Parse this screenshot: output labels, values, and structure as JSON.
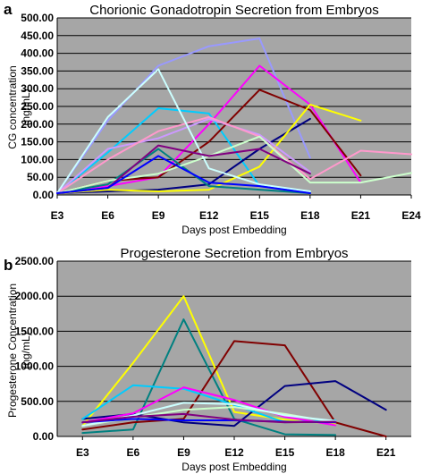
{
  "chart_data": [
    {
      "panel": "a",
      "type": "line",
      "title": "Chorionic Gonadotropin Secretion from Embryos",
      "xlabel": "Days post Embedding",
      "ylabel": [
        "CG concentration",
        "(ng/mL)"
      ],
      "categories": [
        "E3",
        "E6",
        "E9",
        "E12",
        "E15",
        "E18",
        "E21",
        "E24"
      ],
      "ylim": [
        0,
        500
      ],
      "yticks": [
        "0.00",
        "50.00",
        "100.00",
        "150.00",
        "200.00",
        "250.00",
        "300.00",
        "350.00",
        "400.00",
        "450.00",
        "500.00"
      ],
      "series": [
        {
          "color": "#9999ff",
          "values": [
            5,
            210,
            365,
            420,
            442,
            105,
            null,
            null
          ]
        },
        {
          "color": "#ff00ff",
          "values": [
            5,
            25,
            50,
            200,
            365,
            255,
            35,
            null
          ]
        },
        {
          "color": "#00ccff",
          "values": [
            5,
            120,
            245,
            230,
            25,
            10,
            null,
            null
          ]
        },
        {
          "color": "#800000",
          "values": [
            5,
            40,
            50,
            150,
            297,
            240,
            55,
            null
          ]
        },
        {
          "color": "#000080",
          "values": [
            5,
            10,
            15,
            30,
            130,
            215,
            null,
            null
          ]
        },
        {
          "color": "#ffff00",
          "values": [
            5,
            15,
            10,
            15,
            80,
            255,
            210,
            null
          ]
        },
        {
          "color": "#008080",
          "values": [
            5,
            30,
            130,
            25,
            15,
            5,
            null,
            null
          ]
        },
        {
          "color": "#cc99ff",
          "values": [
            5,
            130,
            160,
            215,
            170,
            65,
            null,
            null
          ]
        },
        {
          "color": "#ff99cc",
          "values": [
            5,
            100,
            180,
            220,
            165,
            45,
            125,
            115
          ]
        },
        {
          "color": "#ccffcc",
          "values": [
            5,
            40,
            60,
            110,
            165,
            35,
            35,
            62
          ]
        },
        {
          "color": "#ccffff",
          "values": [
            5,
            220,
            355,
            75,
            30,
            10,
            null,
            null
          ]
        },
        {
          "color": "#800080",
          "values": [
            5,
            20,
            140,
            110,
            130,
            60,
            null,
            null
          ]
        },
        {
          "color": "#0000ff",
          "values": [
            5,
            20,
            110,
            35,
            25,
            5,
            null,
            null
          ]
        }
      ]
    },
    {
      "panel": "b",
      "type": "line",
      "title": "Progesterone Secretion from Embryos",
      "xlabel": "Days post Embedding",
      "ylabel": [
        "Progesterone Concentration",
        "(ng/mL)"
      ],
      "categories": [
        "E3",
        "E6",
        "E9",
        "E12",
        "E15",
        "E18",
        "E21"
      ],
      "ylim": [
        0,
        2500
      ],
      "yticks": [
        "0.00",
        "500.00",
        "1000.00",
        "1500.00",
        "2000.00",
        "2500.00"
      ],
      "series": [
        {
          "color": "#ffff00",
          "values": [
            150,
            1050,
            2000,
            350,
            240,
            180,
            null
          ]
        },
        {
          "color": "#008080",
          "values": [
            50,
            100,
            1670,
            250,
            30,
            20,
            null
          ]
        },
        {
          "color": "#800000",
          "values": [
            100,
            200,
            250,
            1360,
            1300,
            200,
            0
          ]
        },
        {
          "color": "#000080",
          "values": [
            250,
            320,
            200,
            150,
            720,
            790,
            380
          ]
        },
        {
          "color": "#00ccff",
          "values": [
            250,
            730,
            680,
            450,
            200,
            230,
            null
          ]
        },
        {
          "color": "#ff00ff",
          "values": [
            200,
            330,
            700,
            520,
            280,
            160,
            null
          ]
        },
        {
          "color": "#ccffcc",
          "values": [
            150,
            270,
            380,
            420,
            320,
            200,
            null
          ]
        },
        {
          "color": "#ccffff",
          "values": [
            150,
            300,
            480,
            460,
            300,
            220,
            null
          ]
        },
        {
          "color": "#0000ff",
          "values": [
            200,
            250,
            230,
            230,
            210,
            200,
            null
          ]
        },
        {
          "color": "#800080",
          "values": [
            200,
            280,
            320,
            240,
            200,
            210,
            null
          ]
        }
      ]
    }
  ]
}
